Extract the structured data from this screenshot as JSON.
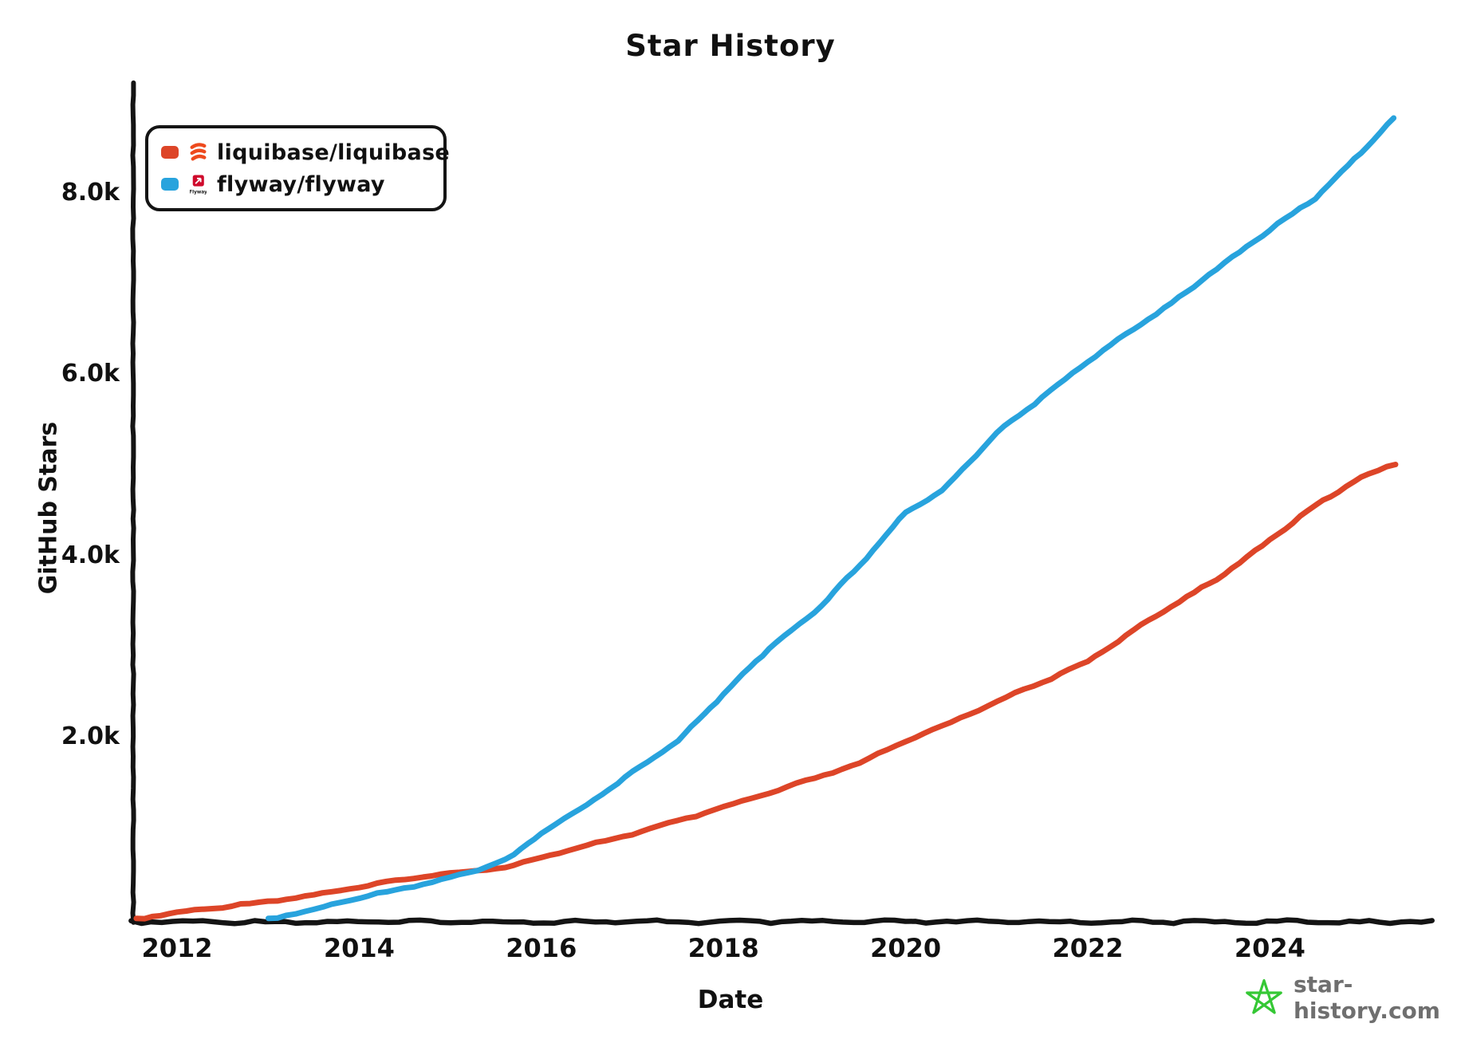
{
  "chart_data": {
    "type": "line",
    "title": "Star History",
    "xlabel": "Date",
    "ylabel": "GitHub Stars",
    "grid": false,
    "legend_position": "top-left",
    "x_axis": {
      "unit": "year",
      "range": [
        2011.55,
        2025.76
      ],
      "ticks": [
        {
          "value": 2012,
          "label": "2012"
        },
        {
          "value": 2014,
          "label": "2014"
        },
        {
          "value": 2016,
          "label": "2016"
        },
        {
          "value": 2018,
          "label": "2018"
        },
        {
          "value": 2020,
          "label": "2020"
        },
        {
          "value": 2022,
          "label": "2022"
        },
        {
          "value": 2024,
          "label": "2024"
        }
      ]
    },
    "y_axis": {
      "unit": "GitHub stars",
      "range": [
        0,
        9200
      ],
      "ticks": [
        {
          "value": 2000,
          "label": "2.0k"
        },
        {
          "value": 4000,
          "label": "4.0k"
        },
        {
          "value": 6000,
          "label": "6.0k"
        },
        {
          "value": 8000,
          "label": "8.0k"
        }
      ]
    },
    "series": [
      {
        "name": "liquibase/liquibase",
        "color": "#dd4528",
        "points": [
          [
            2011.55,
            0
          ],
          [
            2012,
            70
          ],
          [
            2012.5,
            135
          ],
          [
            2013,
            195
          ],
          [
            2013.5,
            265
          ],
          [
            2014,
            350
          ],
          [
            2014.5,
            440
          ],
          [
            2015,
            505
          ],
          [
            2015.3,
            535
          ],
          [
            2015.7,
            590
          ],
          [
            2016,
            680
          ],
          [
            2016.4,
            780
          ],
          [
            2017,
            940
          ],
          [
            2017.5,
            1080
          ],
          [
            2018,
            1230
          ],
          [
            2018.5,
            1390
          ],
          [
            2019,
            1550
          ],
          [
            2019.5,
            1720
          ],
          [
            2020,
            1960
          ],
          [
            2020.5,
            2170
          ],
          [
            2021,
            2400
          ],
          [
            2021.5,
            2610
          ],
          [
            2022,
            2840
          ],
          [
            2022.5,
            3180
          ],
          [
            2023,
            3500
          ],
          [
            2023.5,
            3800
          ],
          [
            2024,
            4180
          ],
          [
            2024.5,
            4560
          ],
          [
            2025,
            4870
          ],
          [
            2025.38,
            5020
          ]
        ]
      },
      {
        "name": "flyway/flyway",
        "color": "#28a3dd",
        "points": [
          [
            2013.0,
            0
          ],
          [
            2013.5,
            100
          ],
          [
            2014,
            240
          ],
          [
            2014.5,
            340
          ],
          [
            2015,
            460
          ],
          [
            2015.3,
            535
          ],
          [
            2015.7,
            700
          ],
          [
            2016,
            950
          ],
          [
            2016.5,
            1260
          ],
          [
            2017,
            1620
          ],
          [
            2017.5,
            1960
          ],
          [
            2018,
            2480
          ],
          [
            2018.5,
            2980
          ],
          [
            2019,
            3380
          ],
          [
            2019.5,
            3900
          ],
          [
            2020,
            4480
          ],
          [
            2020.4,
            4720
          ],
          [
            2021,
            5360
          ],
          [
            2021.5,
            5750
          ],
          [
            2022,
            6150
          ],
          [
            2022.5,
            6500
          ],
          [
            2023,
            6850
          ],
          [
            2023.5,
            7230
          ],
          [
            2024,
            7600
          ],
          [
            2024.5,
            7950
          ],
          [
            2025,
            8450
          ],
          [
            2025.36,
            8830
          ]
        ]
      }
    ]
  },
  "legend": {
    "items": [
      {
        "label": "liquibase/liquibase",
        "color": "#dd4528",
        "icon": "liquibase-logo-icon"
      },
      {
        "label": "flyway/flyway",
        "color": "#28a3dd",
        "icon": "flyway-logo-icon"
      }
    ]
  },
  "footer": {
    "site_text": "star-history.com",
    "icon": "star-icon",
    "icon_color": "#35c835",
    "text_color": "#6f6f6f"
  },
  "axis_color": "#141414"
}
